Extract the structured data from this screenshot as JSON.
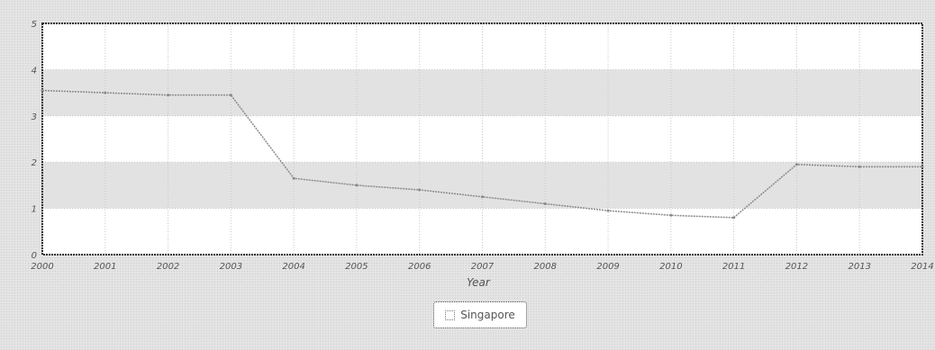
{
  "chart_data": {
    "type": "line",
    "x": [
      "2000",
      "2001",
      "2002",
      "2003",
      "2004",
      "2005",
      "2006",
      "2007",
      "2008",
      "2009",
      "2010",
      "2011",
      "2012",
      "2013",
      "2014"
    ],
    "xlabel": "Year",
    "ylabel": "",
    "ylim": [
      0,
      5
    ],
    "yticks": [
      0,
      1,
      2,
      3,
      4,
      5
    ],
    "grid": true,
    "legend_position": "bottom-center",
    "series": [
      {
        "name": "Singapore",
        "values": [
          3.55,
          3.5,
          3.45,
          3.45,
          1.65,
          1.5,
          1.4,
          1.25,
          1.1,
          0.95,
          0.85,
          0.8,
          1.95,
          1.9,
          1.9
        ],
        "color": "#8a8a8a"
      }
    ],
    "colors": {
      "plot_background": "#ffffff",
      "band": "#e2e2e2",
      "frame": "#2a2a2a",
      "grid": "#c8c8c8",
      "text": "#555555"
    }
  },
  "legend": {
    "items": [
      {
        "label": "Singapore",
        "swatch": "white-square"
      }
    ]
  }
}
